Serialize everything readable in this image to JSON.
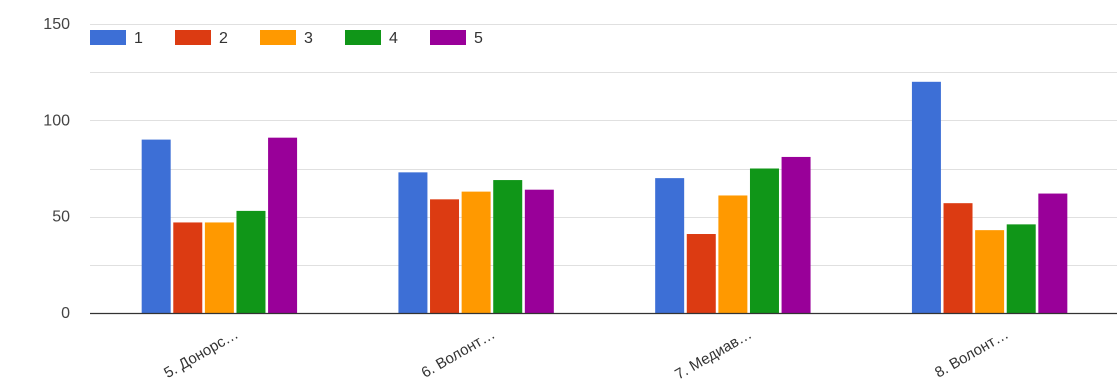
{
  "chart_data": {
    "type": "bar",
    "title": "",
    "xlabel": "",
    "ylabel": "",
    "ylim": [
      0,
      150
    ],
    "yticks": [
      0,
      50,
      100,
      150
    ],
    "grid": true,
    "legend_position": "top-left",
    "categories": [
      "5. Донорс…",
      "6. Волонт…",
      "7. Медиав…",
      "8. Волонт…"
    ],
    "series": [
      {
        "name": "1",
        "color": "#3d6fd6",
        "values": [
          90,
          73,
          70,
          120
        ]
      },
      {
        "name": "2",
        "color": "#dc3b12",
        "values": [
          47,
          59,
          41,
          57
        ]
      },
      {
        "name": "3",
        "color": "#ff9900",
        "values": [
          47,
          63,
          61,
          43
        ]
      },
      {
        "name": "4",
        "color": "#109618",
        "values": [
          53,
          69,
          75,
          46
        ]
      },
      {
        "name": "5",
        "color": "#990099",
        "values": [
          91,
          64,
          81,
          62
        ]
      }
    ]
  }
}
